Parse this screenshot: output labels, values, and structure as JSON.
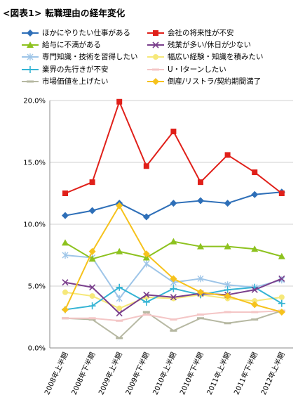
{
  "title": "<図表1> 転職理由の経年変化",
  "chart_data": {
    "type": "line",
    "categories": [
      "2008年上半期",
      "2008年下半期",
      "2009年上半期",
      "2009年下半期",
      "2010年上半期",
      "2010年下半期",
      "2011年上半期",
      "2011年下半期",
      "2012年上半期"
    ],
    "ylim": [
      0,
      20
    ],
    "yticks": [
      "0.0%",
      "5.0%",
      "10.0%",
      "15.0%",
      "20.0%"
    ],
    "grid": true,
    "legend_position": "top",
    "series": [
      {
        "name": "ほかにやりたい仕事がある",
        "color": "#2e6fb8",
        "marker": "diamond",
        "values": [
          10.7,
          11.1,
          11.7,
          10.6,
          11.7,
          11.9,
          11.7,
          12.4,
          12.6
        ]
      },
      {
        "name": "会社の将来性が不安",
        "color": "#e0201a",
        "marker": "square",
        "values": [
          12.5,
          13.4,
          19.9,
          14.7,
          17.5,
          13.4,
          15.6,
          14.2,
          12.5
        ]
      },
      {
        "name": "給与に不満がある",
        "color": "#8dc21f",
        "marker": "triangle",
        "values": [
          8.5,
          7.2,
          7.8,
          7.3,
          8.6,
          8.2,
          8.2,
          8.0,
          7.4
        ]
      },
      {
        "name": "残業が多い/休日が少ない",
        "color": "#7a3f8c",
        "marker": "x",
        "values": [
          5.3,
          4.9,
          2.8,
          4.3,
          4.1,
          4.4,
          4.3,
          4.7,
          5.6
        ]
      },
      {
        "name": "専門知識・技術を習得したい",
        "color": "#9ec5e8",
        "marker": "asterisk",
        "values": [
          7.5,
          7.3,
          4.0,
          6.8,
          5.3,
          5.6,
          5.1,
          4.9,
          5.5
        ]
      },
      {
        "name": "幅広い経験・知識を積みたい",
        "color": "#f6e87a",
        "marker": "circle",
        "values": [
          4.5,
          4.2,
          3.2,
          4.1,
          4.0,
          4.3,
          4.0,
          3.8,
          4.1
        ]
      },
      {
        "name": "業界の先行きが不安",
        "color": "#35b4d4",
        "marker": "plus",
        "values": [
          3.1,
          3.4,
          4.9,
          3.7,
          4.8,
          4.3,
          4.7,
          4.9,
          3.6
        ]
      },
      {
        "name": "U・Iターンしたい",
        "color": "#f4c6c6",
        "marker": "dash",
        "values": [
          2.4,
          2.4,
          2.2,
          2.7,
          2.3,
          2.7,
          2.9,
          2.9,
          3.0
        ]
      },
      {
        "name": "市場価値を上げたい",
        "color": "#b6b8a2",
        "marker": "dash",
        "values": [
          2.4,
          2.3,
          0.8,
          2.9,
          1.4,
          2.4,
          2.0,
          2.3,
          3.0
        ]
      },
      {
        "name": "倒産/リストラ/契約期間満了",
        "color": "#f6c21c",
        "marker": "diamond",
        "values": [
          3.1,
          7.8,
          11.5,
          7.6,
          5.6,
          4.5,
          4.2,
          3.5,
          2.9
        ]
      }
    ]
  }
}
